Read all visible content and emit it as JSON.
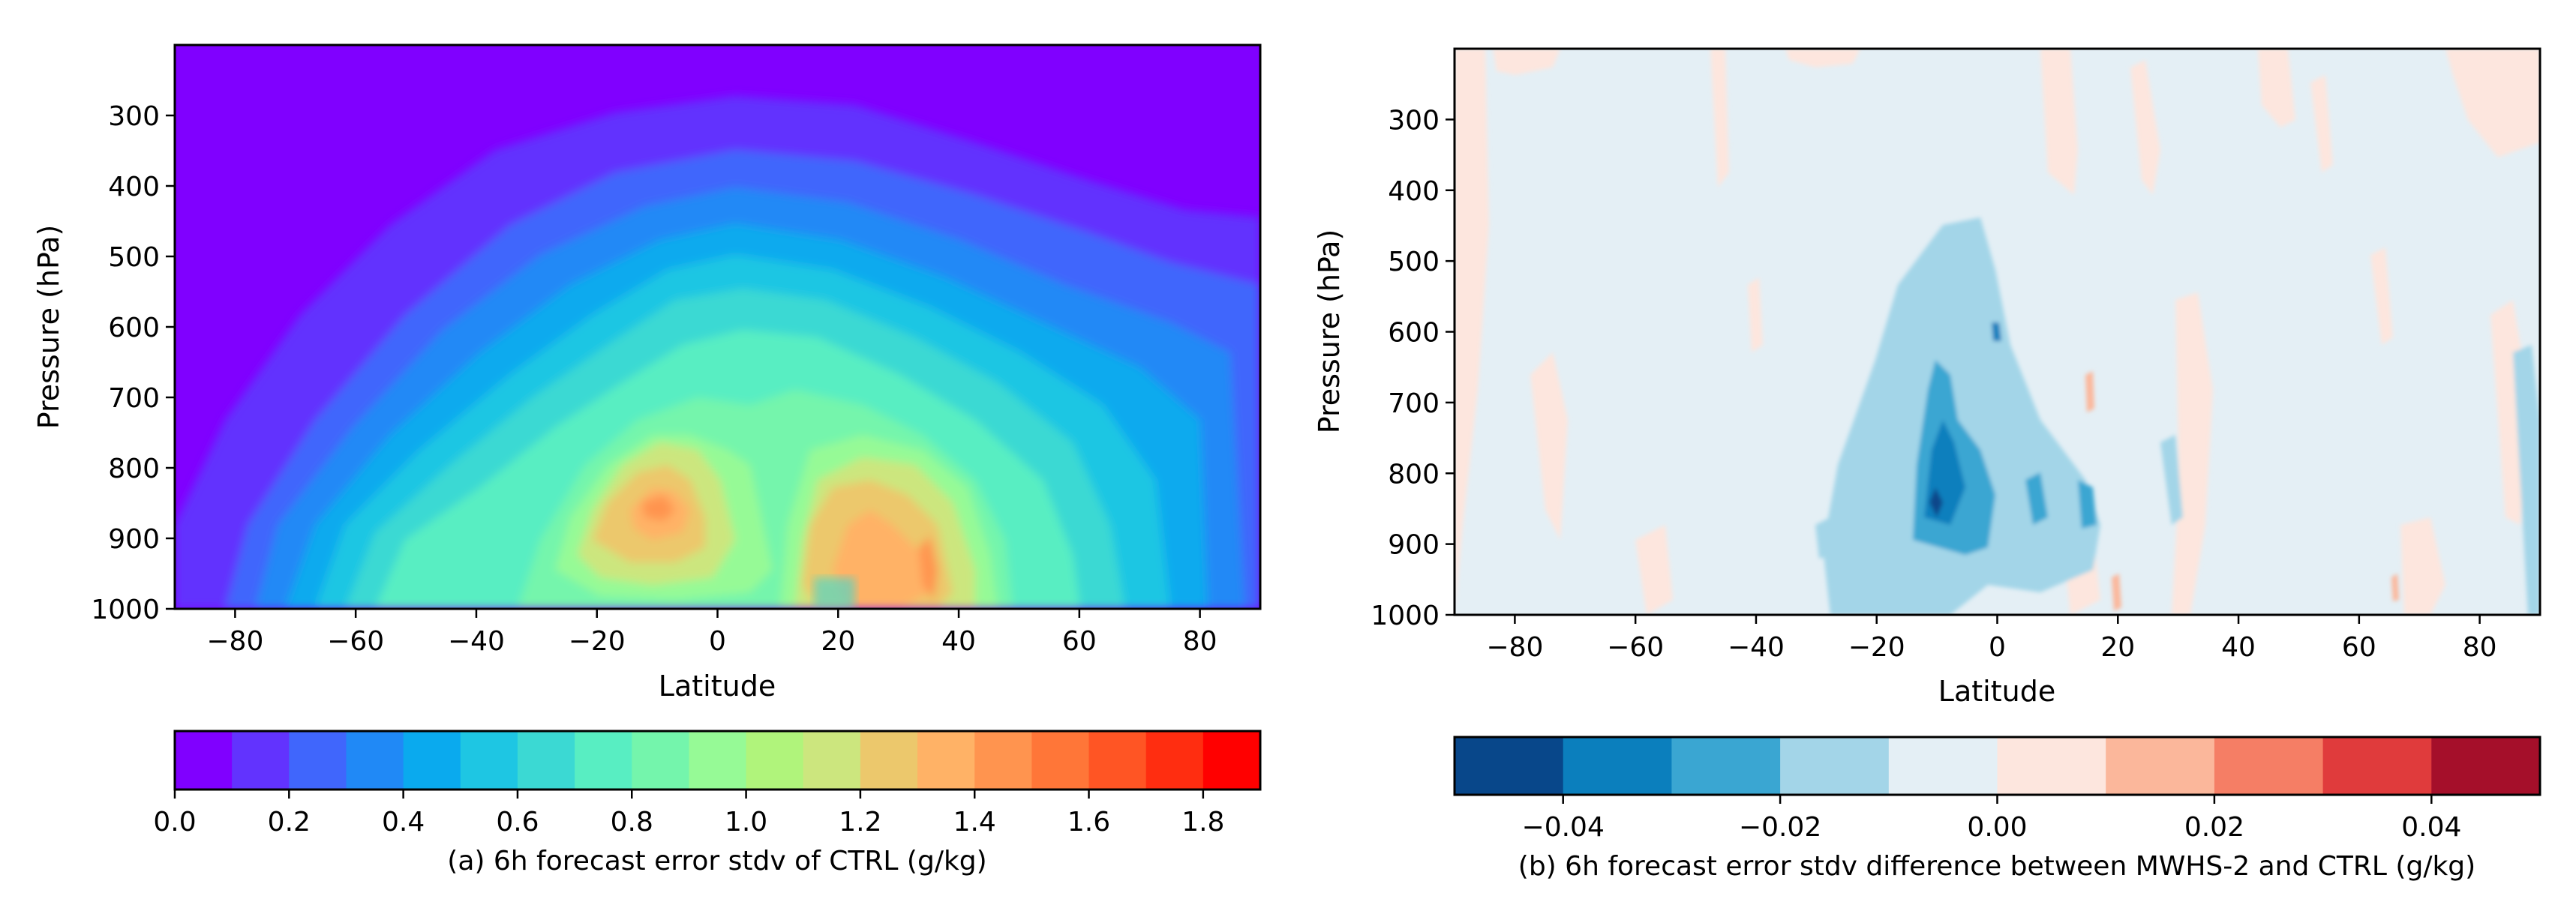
{
  "chart_data": [
    {
      "type": "contourf",
      "panel": "a",
      "xlabel": "Latitude",
      "ylabel": "Pressure (hPa)",
      "xlim": [
        -90,
        90
      ],
      "ylim": [
        1000,
        200
      ],
      "xticks": [
        -80,
        -60,
        -40,
        -20,
        0,
        20,
        40,
        60,
        80
      ],
      "yticks": [
        300,
        400,
        500,
        600,
        700,
        800,
        900,
        1000
      ],
      "colorbar": {
        "levels": [
          0.0,
          0.1,
          0.2,
          0.3,
          0.4,
          0.5,
          0.6,
          0.7,
          0.8,
          0.9,
          1.0,
          1.1,
          1.2,
          1.3,
          1.4,
          1.5,
          1.6,
          1.7,
          1.8,
          1.9
        ],
        "ticks": [
          "0.0",
          "0.2",
          "0.4",
          "0.6",
          "0.8",
          "1.0",
          "1.2",
          "1.4",
          "1.6",
          "1.8"
        ],
        "colors": [
          "#8000ff",
          "#6233fe",
          "#4066fc",
          "#2089f6",
          "#0aaaee",
          "#1ec6e3",
          "#3bd9d3",
          "#58eec2",
          "#74f5ac",
          "#96fa96",
          "#b0f47b",
          "#cce67e",
          "#ecc86c",
          "#ffb266",
          "#ff944f",
          "#ff7638",
          "#ff5524",
          "#ff2d10",
          "#ff0000"
        ],
        "caption": "(a) 6h forecast error stdv of CTRL (g/kg)"
      }
    },
    {
      "type": "contourf",
      "panel": "b",
      "xlabel": "Latitude",
      "ylabel": "Pressure (hPa)",
      "xlim": [
        -90,
        90
      ],
      "ylim": [
        1000,
        200
      ],
      "xticks": [
        -80,
        -60,
        -40,
        -20,
        0,
        20,
        40,
        60,
        80
      ],
      "yticks": [
        300,
        400,
        500,
        600,
        700,
        800,
        900,
        1000
      ],
      "colorbar": {
        "levels": [
          -0.05,
          -0.04,
          -0.03,
          -0.02,
          -0.01,
          0.0,
          0.01,
          0.02,
          0.03,
          0.04,
          0.05
        ],
        "ticks": [
          "−0.04",
          "−0.02",
          "0.00",
          "0.02",
          "0.04"
        ],
        "tick_values": [
          -0.04,
          -0.02,
          0.0,
          0.02,
          0.04
        ],
        "colors": [
          "#08478a",
          "#0b7fbd",
          "#3aa6d2",
          "#a3d5e8",
          "#e4eff5",
          "#fde6de",
          "#fbb79b",
          "#f57e65",
          "#e03b3c",
          "#a50f2a"
        ],
        "caption": "(b) 6h forecast error stdv difference between MWHS-2 and CTRL (g/kg)"
      }
    }
  ]
}
